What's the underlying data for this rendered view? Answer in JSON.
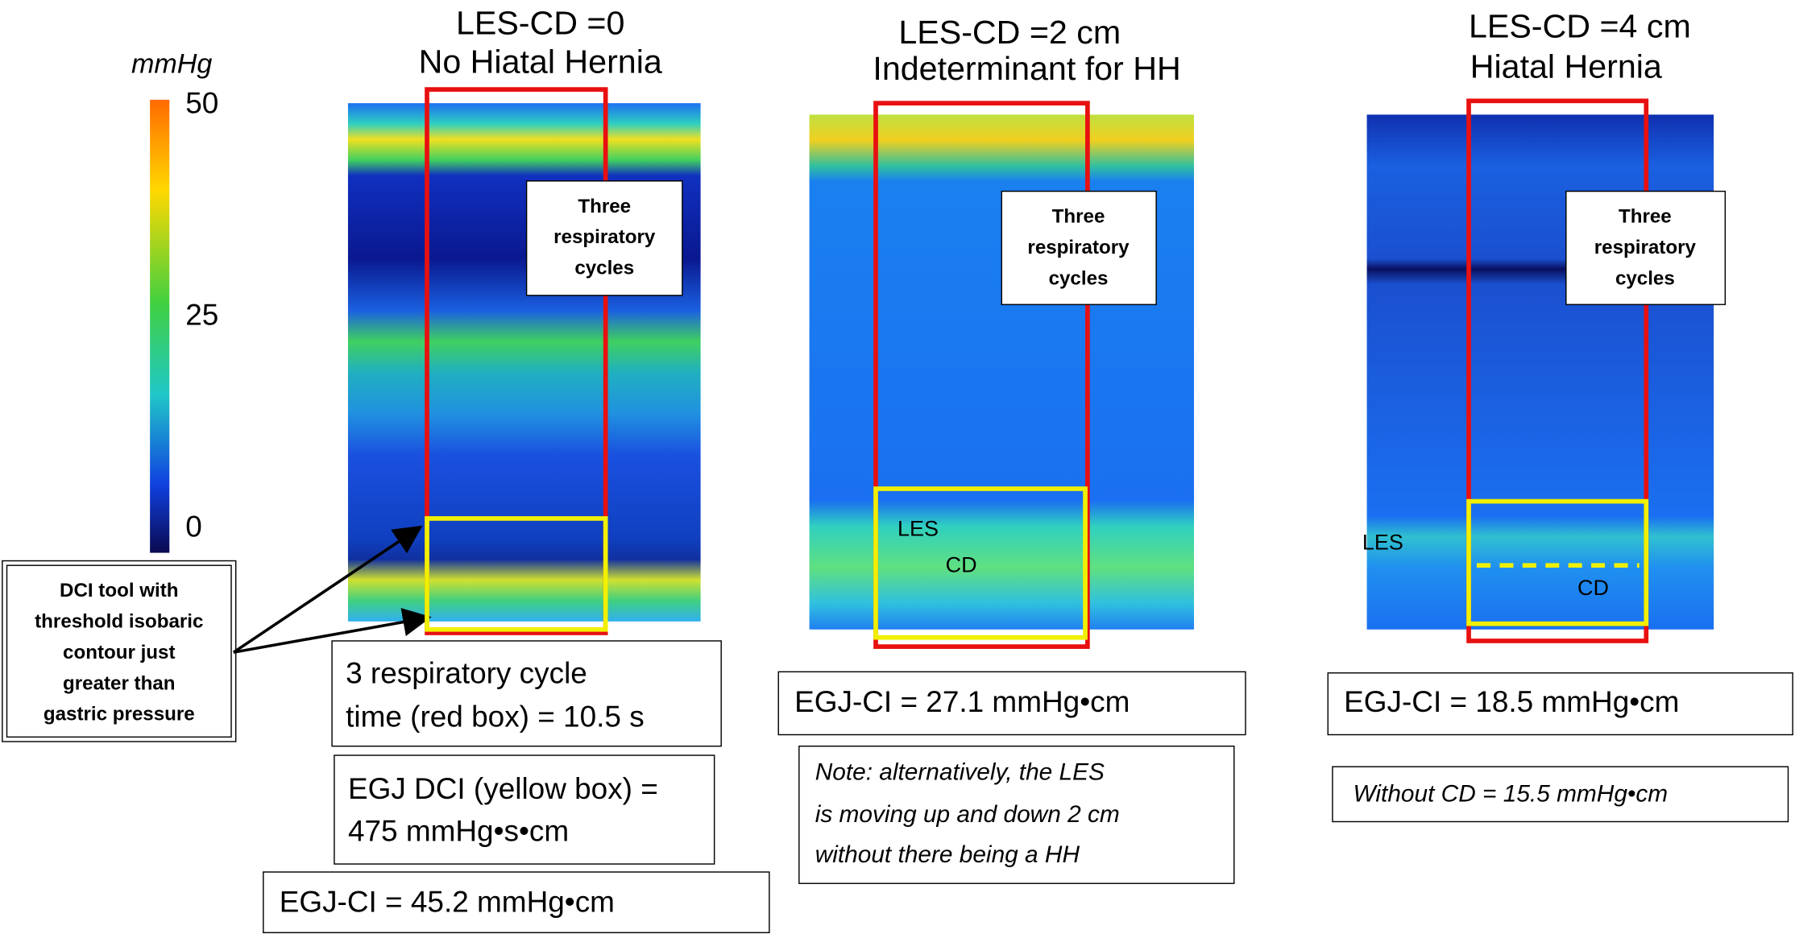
{
  "colorbar": {
    "unit": "mmHg",
    "ticks": [
      50,
      25,
      0
    ]
  },
  "callout": {
    "lines": [
      "DCI tool with",
      "threshold isobaric",
      "contour just",
      "greater than",
      "gastric pressure"
    ]
  },
  "panels": [
    {
      "title": [
        "LES-CD =0",
        "No Hiatal Hernia"
      ],
      "box_label": [
        "Three",
        "respiratory",
        "cycles"
      ],
      "notes": [
        {
          "lines": [
            "3 respiratory cycle",
            "time (red box) = 10.5 s"
          ]
        },
        {
          "lines": [
            "EGJ DCI (yellow box) =",
            "475 mmHg•s•cm"
          ]
        },
        {
          "lines": [
            "EGJ-CI = 45.2 mmHg•cm"
          ]
        }
      ]
    },
    {
      "title": [
        "LES-CD =2 cm",
        "Indeterminant for HH"
      ],
      "box_label": [
        "Three",
        "respiratory",
        "cycles"
      ],
      "labels": [
        "LES",
        "CD"
      ],
      "notes": [
        {
          "lines": [
            "EGJ-CI = 27.1 mmHg•cm"
          ]
        },
        {
          "lines": [
            "Note: alternatively, the LES",
            "is moving up and down 2 cm",
            "without there being a HH"
          ]
        }
      ]
    },
    {
      "title": [
        "LES-CD =4 cm",
        "Hiatal Hernia"
      ],
      "box_label": [
        "Three",
        "respiratory",
        "cycles"
      ],
      "labels": [
        "LES",
        "CD"
      ],
      "notes": [
        {
          "lines": [
            "EGJ-CI = 18.5 mmHg•cm"
          ]
        },
        {
          "lines": [
            "Without CD = 15.5 mmHg•cm"
          ]
        }
      ]
    }
  ]
}
